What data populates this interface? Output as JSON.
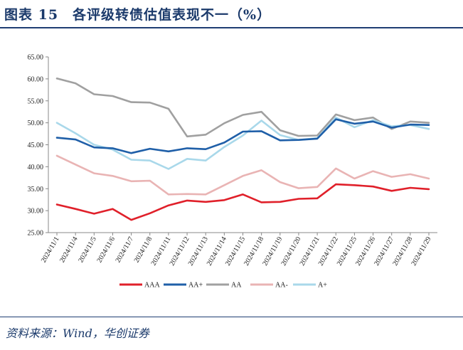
{
  "header": {
    "title": "图表 15　各评级转债估值表现不一（%）"
  },
  "footer": {
    "source": "资料来源：Wind，华创证券"
  },
  "chart_data": {
    "type": "line",
    "title": "各评级转债估值表现不一（%）",
    "xlabel": "",
    "ylabel": "",
    "ylim": [
      25,
      65
    ],
    "yticks": [
      "25.00",
      "30.00",
      "35.00",
      "40.00",
      "45.00",
      "50.00",
      "55.00",
      "60.00",
      "65.00"
    ],
    "grid": false,
    "legend_position": "bottom",
    "categories": [
      "2024/11/1",
      "2024/11/4",
      "2024/11/5",
      "2024/11/6",
      "2024/11/7",
      "2024/11/8",
      "2024/11/11",
      "2024/11/12",
      "2024/11/13",
      "2024/11/14",
      "2024/11/15",
      "2024/11/18",
      "2024/11/19",
      "2024/11/20",
      "2024/11/21",
      "2024/11/22",
      "2024/11/25",
      "2024/11/26",
      "2024/11/27",
      "2024/11/28",
      "2024/11/29"
    ],
    "series": [
      {
        "name": "AAA",
        "color": "#e0202a",
        "values": [
          31.4,
          30.4,
          29.3,
          30.4,
          27.9,
          29.4,
          31.2,
          32.3,
          32.0,
          32.4,
          33.7,
          31.9,
          32.0,
          32.7,
          32.8,
          36.0,
          35.8,
          35.5,
          34.5,
          35.2,
          34.9
        ]
      },
      {
        "name": "AA+",
        "color": "#1f5fa8",
        "values": [
          46.6,
          46.2,
          44.4,
          44.2,
          43.1,
          44.1,
          43.5,
          44.2,
          44.0,
          45.5,
          48.0,
          48.1,
          46.0,
          46.1,
          46.4,
          50.8,
          49.8,
          50.3,
          48.9,
          49.6,
          49.5
        ]
      },
      {
        "name": "AA",
        "color": "#a0a0a0",
        "values": [
          60.1,
          59.0,
          56.5,
          56.1,
          54.7,
          54.6,
          53.2,
          46.9,
          47.3,
          49.9,
          51.8,
          52.5,
          48.3,
          47.0,
          47.1,
          51.9,
          50.6,
          51.2,
          48.6,
          50.3,
          50.0
        ]
      },
      {
        "name": "AA-",
        "color": "#e9b4b4",
        "values": [
          42.5,
          40.5,
          38.5,
          37.9,
          36.7,
          36.8,
          33.7,
          33.8,
          33.7,
          35.8,
          37.9,
          39.2,
          36.5,
          35.1,
          35.4,
          39.6,
          37.3,
          39.0,
          37.7,
          38.3,
          37.3
        ]
      },
      {
        "name": "A+",
        "color": "#a9d8ea",
        "values": [
          50.0,
          47.6,
          45.0,
          43.9,
          41.6,
          41.4,
          39.5,
          41.8,
          41.4,
          44.5,
          47.1,
          50.5,
          47.2,
          46.1,
          46.5,
          51.2,
          49.0,
          50.6,
          49.2,
          49.5,
          48.6
        ]
      }
    ]
  }
}
